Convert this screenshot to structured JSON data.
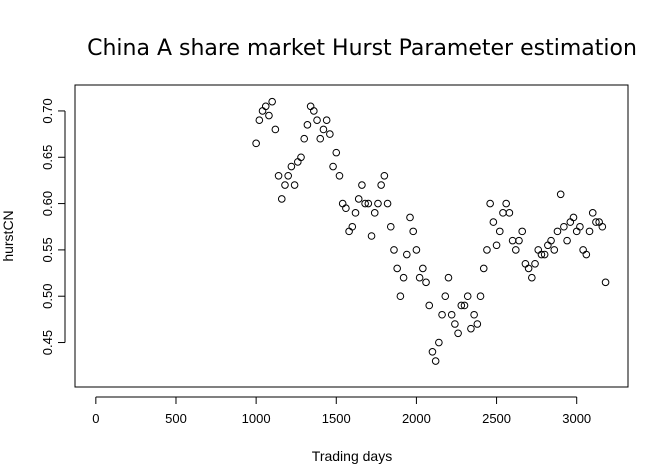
{
  "chart_data": {
    "type": "scatter",
    "title": "China A share market Hurst Parameter estimation",
    "xlabel": "Trading days",
    "ylabel": "hurstCN",
    "xlim": [
      -130,
      3320
    ],
    "ylim": [
      0.402,
      0.728
    ],
    "x_ticks": [
      0,
      500,
      1000,
      1500,
      2000,
      2500,
      3000
    ],
    "x_tick_labels": [
      "0",
      "500",
      "1000",
      "1500",
      "2000",
      "2500",
      "3000"
    ],
    "y_ticks": [
      0.45,
      0.5,
      0.55,
      0.6,
      0.65,
      0.7
    ],
    "y_tick_labels": [
      "0.45",
      "0.50",
      "0.55",
      "0.60",
      "0.65",
      "0.70"
    ],
    "grid": false,
    "legend": "none",
    "marker": "open-circle",
    "series": [
      {
        "x": [
          1000,
          1020,
          1040,
          1060,
          1080,
          1100,
          1120,
          1140,
          1160,
          1180,
          1200,
          1220,
          1240,
          1260,
          1280,
          1300,
          1320,
          1340,
          1360,
          1380,
          1400,
          1420,
          1440,
          1460,
          1480,
          1500,
          1520,
          1540,
          1560,
          1580,
          1600,
          1620,
          1640,
          1660,
          1680,
          1700,
          1720,
          1740,
          1760,
          1780,
          1800,
          1820,
          1840,
          1860,
          1880,
          1900,
          1920,
          1940,
          1960,
          1980,
          2000,
          2020,
          2040,
          2060,
          2080,
          2100,
          2120,
          2140,
          2160,
          2180,
          2200,
          2220,
          2240,
          2260,
          2280,
          2300,
          2320,
          2340,
          2360,
          2380,
          2400,
          2420,
          2440,
          2460,
          2480,
          2500,
          2520,
          2540,
          2560,
          2580,
          2600,
          2620,
          2640,
          2660,
          2680,
          2700,
          2720,
          2740,
          2760,
          2780,
          2800,
          2820,
          2840,
          2860,
          2880,
          2900,
          2920,
          2940,
          2960,
          2980,
          3000,
          3020,
          3040,
          3060,
          3080,
          3100,
          3120,
          3140,
          3160,
          3180
        ],
        "values": [
          0.665,
          0.69,
          0.7,
          0.705,
          0.695,
          0.71,
          0.68,
          0.63,
          0.605,
          0.62,
          0.63,
          0.64,
          0.62,
          0.645,
          0.65,
          0.67,
          0.685,
          0.705,
          0.7,
          0.69,
          0.67,
          0.68,
          0.69,
          0.675,
          0.64,
          0.655,
          0.63,
          0.6,
          0.595,
          0.57,
          0.575,
          0.59,
          0.605,
          0.62,
          0.6,
          0.6,
          0.565,
          0.59,
          0.6,
          0.62,
          0.63,
          0.6,
          0.575,
          0.55,
          0.53,
          0.5,
          0.52,
          0.545,
          0.585,
          0.57,
          0.55,
          0.52,
          0.53,
          0.515,
          0.49,
          0.44,
          0.43,
          0.45,
          0.48,
          0.5,
          0.52,
          0.48,
          0.47,
          0.46,
          0.49,
          0.49,
          0.5,
          0.465,
          0.48,
          0.47,
          0.5,
          0.53,
          0.55,
          0.6,
          0.58,
          0.555,
          0.57,
          0.59,
          0.6,
          0.59,
          0.56,
          0.55,
          0.56,
          0.57,
          0.535,
          0.53,
          0.52,
          0.535,
          0.55,
          0.545,
          0.545,
          0.555,
          0.56,
          0.55,
          0.57,
          0.61,
          0.575,
          0.56,
          0.58,
          0.585,
          0.57,
          0.575,
          0.55,
          0.545,
          0.57,
          0.59,
          0.58,
          0.58,
          0.575,
          0.515
        ]
      }
    ]
  }
}
